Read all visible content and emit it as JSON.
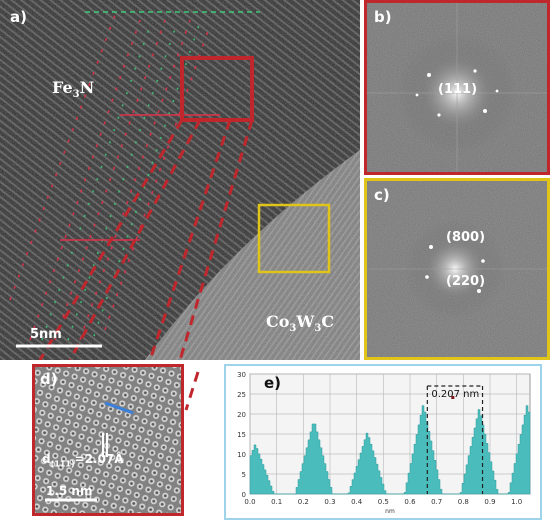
{
  "panel_a": {
    "label": "a)",
    "phase_top": {
      "main": "Fe",
      "sub": "3",
      "rest": "N"
    },
    "phase_bottom": {
      "a": "Co",
      "sub1": "3",
      "b": "W",
      "sub2": "3",
      "c": "C"
    },
    "scale_bar": "5nm"
  },
  "panel_b": {
    "label": "b)",
    "index": "(111)"
  },
  "panel_c": {
    "label": "c)",
    "index_1": "(800)",
    "index_2": "(220)"
  },
  "panel_d": {
    "label": "d)",
    "spacing_prefix": "d",
    "spacing_sub": "(111)",
    "spacing_value": "=2.07Å",
    "scale_bar": "1.5 nm"
  },
  "panel_e": {
    "label": "e)",
    "measurement": "0.207 nm",
    "unit_label": "nm"
  },
  "chart_data": {
    "type": "area",
    "xlim": [
      0,
      1.05
    ],
    "ylim": [
      0,
      30
    ],
    "x_ticks": [
      "0.0",
      "0.1",
      "0.2",
      "0.3",
      "0.4",
      "0.5",
      "0.6",
      "0.7",
      "0.8",
      "0.9",
      "1.0"
    ],
    "y_ticks": [
      "0",
      "5",
      "10",
      "15",
      "20",
      "25",
      "30"
    ],
    "xlabel": "nm",
    "peaks": [
      {
        "x": 0.02,
        "y": 12.5
      },
      {
        "x": 0.24,
        "y": 18.5
      },
      {
        "x": 0.44,
        "y": 15.5
      },
      {
        "x": 0.65,
        "y": 22.5
      },
      {
        "x": 0.86,
        "y": 21.5
      },
      {
        "x": 1.04,
        "y": 22.5
      }
    ],
    "markers": [
      0.665,
      0.872
    ],
    "annotation": "0.207 nm",
    "colors": {
      "fill": "#4bbcbc",
      "grid": "#bfbfbf",
      "marker": "#222222"
    }
  },
  "colors": {
    "fe_frame": "#c0272d",
    "co_frame": "#e0c419",
    "pink_frame": "#e8a5b8",
    "chart_frame": "#9ed4ea"
  }
}
